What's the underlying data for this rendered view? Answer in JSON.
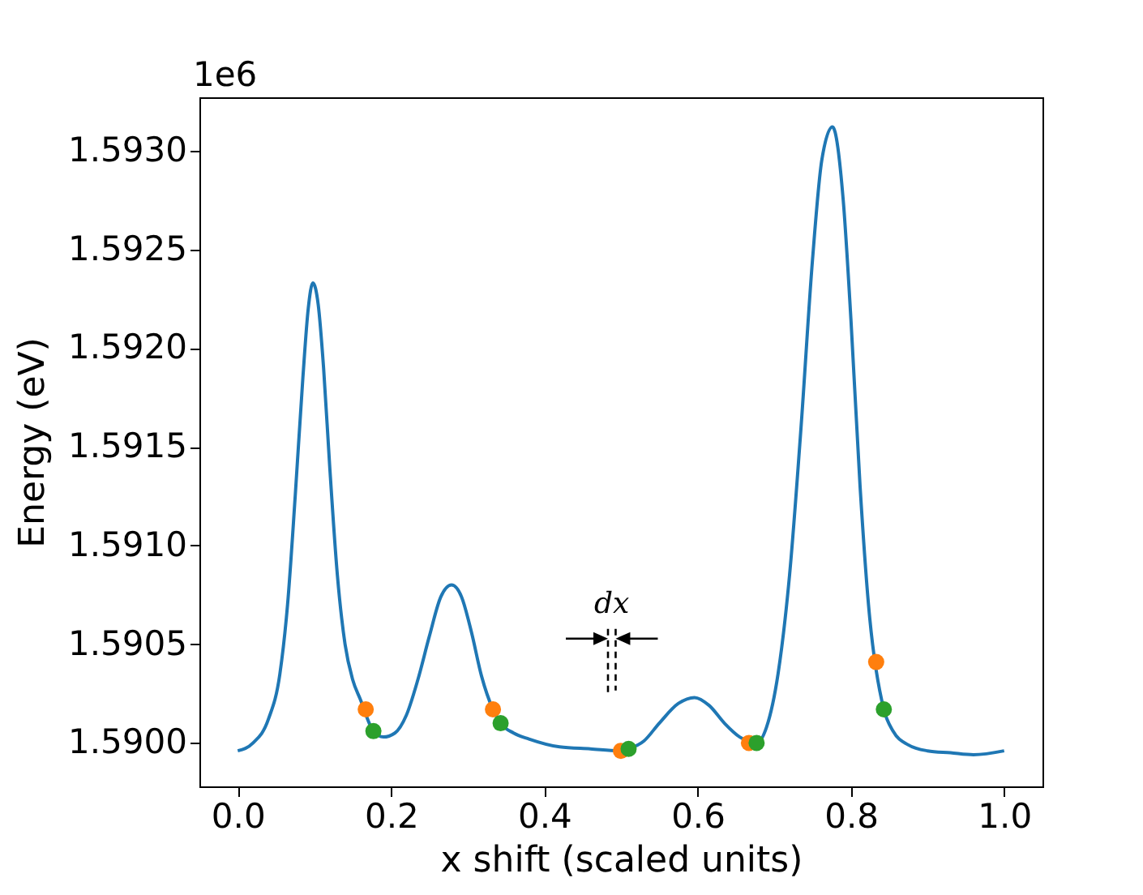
{
  "chart_data": {
    "type": "line",
    "xlabel": "x shift (scaled units)",
    "ylabel": "Energy (eV)",
    "annotations": [
      "1e6",
      "dx"
    ],
    "xlim": [
      -0.05,
      1.05
    ],
    "ylim": [
      1.58978,
      1.59327
    ],
    "xticks": [
      {
        "value": 0,
        "label": "0.0"
      },
      {
        "value": 0.2,
        "label": "0.2"
      },
      {
        "value": 0.4,
        "label": "0.4"
      },
      {
        "value": 0.6,
        "label": "0.6"
      },
      {
        "value": 0.8,
        "label": "0.8"
      },
      {
        "value": 1,
        "label": "1.0"
      }
    ],
    "yticks": [
      {
        "value": 1.59,
        "label": "1.5900"
      },
      {
        "value": 1.5905,
        "label": "1.5905"
      },
      {
        "value": 1.591,
        "label": "1.5910"
      },
      {
        "value": 1.5915,
        "label": "1.5915"
      },
      {
        "value": 1.592,
        "label": "1.5920"
      },
      {
        "value": 1.5925,
        "label": "1.5925"
      },
      {
        "value": 1.593,
        "label": "1.5930"
      }
    ],
    "grid": false,
    "series": [
      {
        "color": "#1f77b4",
        "marker": "none",
        "line_style": "solid",
        "x": [
          0,
          0.02,
          0.04,
          0.055,
          0.065,
          0.075,
          0.085,
          0.092,
          0.098,
          0.105,
          0.112,
          0.12,
          0.13,
          0.14,
          0.15,
          0.16,
          0.177,
          0.19,
          0.205,
          0.22,
          0.235,
          0.25,
          0.265,
          0.279,
          0.292,
          0.305,
          0.318,
          0.333,
          0.343,
          0.36,
          0.38,
          0.42,
          0.46,
          0.5,
          0.51,
          0.53,
          0.55,
          0.575,
          0.596,
          0.615,
          0.635,
          0.655,
          0.677,
          0.69,
          0.705,
          0.72,
          0.735,
          0.75,
          0.762,
          0.776,
          0.79,
          0.8,
          0.812,
          0.823,
          0.843,
          0.855,
          0.875,
          0.9,
          0.93,
          0.96,
          1.0
        ],
        "values": [
          1.58996,
          1.59,
          1.59012,
          1.59035,
          1.5907,
          1.59125,
          1.59185,
          1.5922,
          1.59233,
          1.59222,
          1.5919,
          1.5914,
          1.59085,
          1.5905,
          1.59032,
          1.59022,
          1.59006,
          1.59003,
          1.59005,
          1.59014,
          1.59032,
          1.59054,
          1.59074,
          1.5908,
          1.59074,
          1.59056,
          1.59034,
          1.59017,
          1.5901,
          1.59005,
          1.59002,
          1.58998,
          1.58997,
          1.58996,
          1.58997,
          1.59001,
          1.5901,
          1.5902,
          1.59023,
          1.59019,
          1.5901,
          1.59003,
          1.59,
          1.59008,
          1.59035,
          1.59085,
          1.5916,
          1.59245,
          1.59295,
          1.59312,
          1.59275,
          1.59215,
          1.5913,
          1.5907,
          1.59017,
          1.59006,
          1.58999,
          1.58996,
          1.58995,
          1.58994,
          1.58996
        ]
      },
      {
        "type": "scatter",
        "color": "#ff7f0e",
        "marker": "circle",
        "x": [
          0.167,
          0.333,
          0.5,
          0.667,
          0.833
        ],
        "values": [
          1.59017,
          1.59017,
          1.58996,
          1.59,
          1.59041
        ]
      },
      {
        "type": "scatter",
        "color": "#2ca02c",
        "marker": "circle",
        "x": [
          0.177,
          0.343,
          0.51,
          0.677,
          0.843
        ],
        "values": [
          1.59006,
          1.5901,
          1.58997,
          1.59,
          1.59017
        ]
      }
    ]
  }
}
